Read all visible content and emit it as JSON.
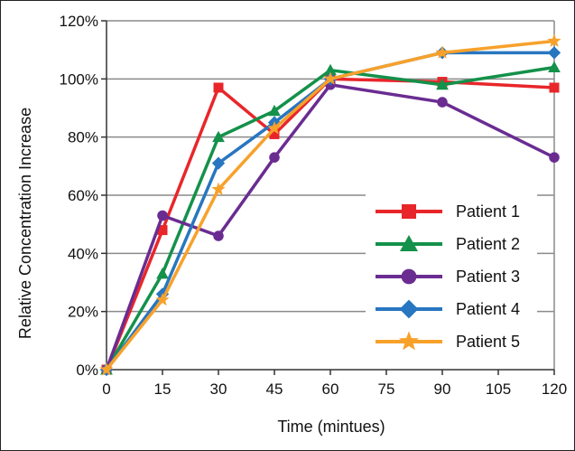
{
  "chart_data": {
    "type": "line",
    "xlabel": "Time (mintues)",
    "ylabel": "Relative Concentration Increase",
    "x": [
      0,
      15,
      30,
      45,
      60,
      90,
      120
    ],
    "x_ticks": [
      "0",
      "15",
      "30",
      "45",
      "60",
      "75",
      "90",
      "105",
      "120"
    ],
    "x_tick_values": [
      0,
      15,
      30,
      45,
      60,
      75,
      90,
      105,
      120
    ],
    "y_ticks": [
      "0%",
      "20%",
      "40%",
      "60%",
      "80%",
      "100%",
      "120%"
    ],
    "y_tick_values": [
      0,
      20,
      40,
      60,
      80,
      100,
      120
    ],
    "xlim": [
      0,
      120
    ],
    "ylim": [
      0,
      120
    ],
    "grid": "horizontal",
    "legend_position": "lower-right",
    "series": [
      {
        "name": "Patient 1",
        "color": "#e8262a",
        "marker": "square",
        "values": [
          0,
          48,
          97,
          81,
          100,
          99,
          97
        ]
      },
      {
        "name": "Patient 2",
        "color": "#14914a",
        "marker": "triangle",
        "values": [
          0,
          33,
          80,
          89,
          103,
          98,
          104
        ]
      },
      {
        "name": "Patient 3",
        "color": "#6a2c91",
        "marker": "circle",
        "values": [
          0,
          53,
          46,
          73,
          98,
          92,
          73
        ]
      },
      {
        "name": "Patient 4",
        "color": "#2876c0",
        "marker": "diamond",
        "values": [
          0,
          26,
          71,
          85,
          100,
          109,
          109
        ]
      },
      {
        "name": "Patient 5",
        "color": "#f7a12b",
        "marker": "star",
        "values": [
          0,
          24,
          62,
          83,
          100,
          109,
          113
        ]
      }
    ]
  }
}
